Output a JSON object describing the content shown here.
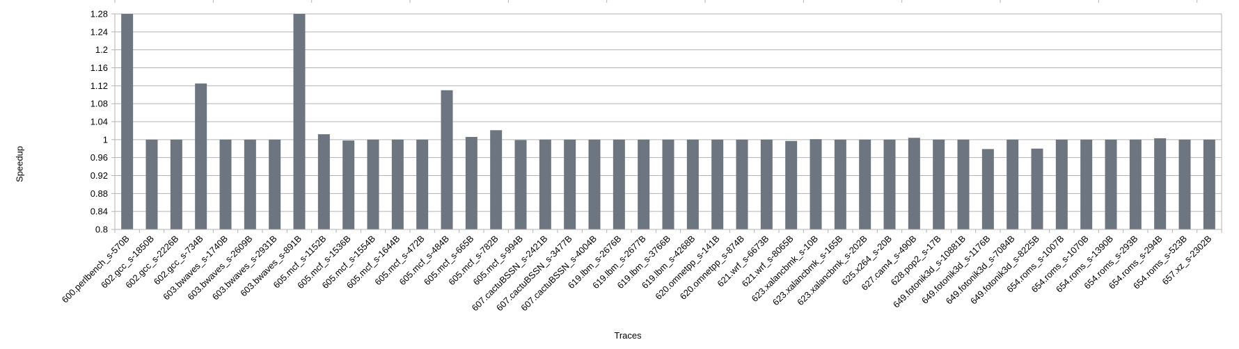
{
  "chart_data": {
    "type": "bar",
    "xlabel": "Traces",
    "ylabel": "Speedup",
    "ylim": [
      0.8,
      1.28
    ],
    "yticks": [
      "0.8",
      "0.84",
      "0.88",
      "0.92",
      "0.96",
      "1",
      "1.04",
      "1.08",
      "1.12",
      "1.16",
      "1.2",
      "1.24",
      "1.28"
    ],
    "grid": true,
    "legend": "none",
    "bar_color": "#6d7680",
    "categories": [
      "600.perlbench_s-570B",
      "602.gcc_s-1850B",
      "602.gcc_s-2226B",
      "602.gcc_s-734B",
      "603.bwaves_s-1740B",
      "603.bwaves_s-2609B",
      "603.bwaves_s-2931B",
      "603.bwaves_s-891B",
      "605.mcf_s-1152B",
      "605.mcf_s-1536B",
      "605.mcf_s-1554B",
      "605.mcf_s-1644B",
      "605.mcf_s-472B",
      "605.mcf_s-484B",
      "605.mcf_s-665B",
      "605.mcf_s-782B",
      "605.mcf_s-994B",
      "607.cactuBSSN_s-2421B",
      "607.cactuBSSN_s-3477B",
      "607.cactuBSSN_s-4004B",
      "619.lbm_s-2676B",
      "619.lbm_s-2677B",
      "619.lbm_s-3766B",
      "619.lbm_s-4268B",
      "620.omnetpp_s-141B",
      "620.omnetpp_s-874B",
      "621.wrf_s-6673B",
      "621.wrf_s-8065B",
      "623.xalancbmk_s-10B",
      "623.xalancbmk_s-165B",
      "623.xalancbmk_s-202B",
      "625.x264_s-20B",
      "627.cam4_s-490B",
      "628.pop2_s-17B",
      "649.fotonik3d_s-10881B",
      "649.fotonik3d_s-1176B",
      "649.fotonik3d_s-7084B",
      "649.fotonik3d_s-8225B",
      "654.roms_s-1007B",
      "654.roms_s-1070B",
      "654.roms_s-1390B",
      "654.roms_s-293B",
      "654.roms_s-294B",
      "654.roms_s-523B",
      "657.xz_s-2302B"
    ],
    "values": [
      1.28,
      1.0,
      1.0,
      1.125,
      1.0,
      1.0,
      1.0,
      1.28,
      1.012,
      0.998,
      1.0,
      1.0,
      1.0,
      1.11,
      1.006,
      1.021,
      0.999,
      1.0,
      1.0,
      1.0,
      1.0,
      1.0,
      1.0,
      1.0,
      1.0,
      1.0,
      1.0,
      0.997,
      1.001,
      1.0,
      1.0,
      1.0,
      1.004,
      1.0,
      1.0,
      0.979,
      1.0,
      0.98,
      1.0,
      1.0,
      1.0,
      1.0,
      1.003,
      1.0,
      1.0
    ]
  }
}
